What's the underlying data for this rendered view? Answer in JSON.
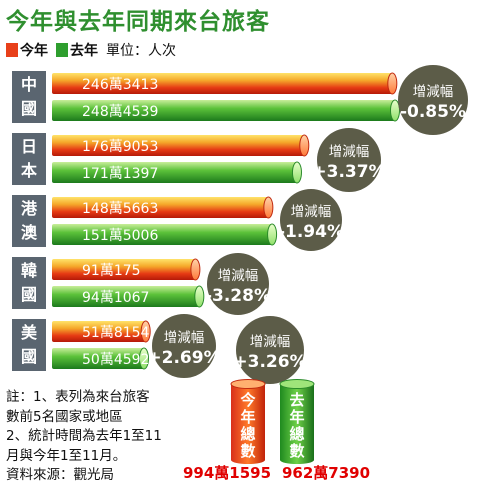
{
  "title": "今年與去年同期來台旅客",
  "legend": {
    "this_year": "今年",
    "last_year": "去年",
    "unit": "單位：人次"
  },
  "colors": {
    "this_year": "#e8401a",
    "last_year": "#2e9e2e",
    "category_bg": "#5a6570",
    "badge_bg": "#5c5c48"
  },
  "chart_data": {
    "type": "bar",
    "orientation": "horizontal",
    "categories": [
      "中國",
      "日本",
      "港澳",
      "韓國",
      "美國"
    ],
    "series": [
      {
        "name": "今年",
        "values": [
          2463413,
          1769053,
          1485663,
          910175,
          518154
        ],
        "labels": [
          "246萬3413",
          "176萬9053",
          "148萬5663",
          "91萬175",
          "51萬8154"
        ]
      },
      {
        "name": "去年",
        "values": [
          2484539,
          1711397,
          1515006,
          941067,
          504592
        ],
        "labels": [
          "248萬4539",
          "171萬1397",
          "151萬5006",
          "94萬1067",
          "50萬4592"
        ]
      }
    ],
    "change_label": "增減幅",
    "changes": [
      "-0.85%",
      "+3.37%",
      "-1.94%",
      "-3.28%",
      "+2.69%"
    ],
    "total": {
      "change_label": "增減幅",
      "change": "+3.26%",
      "this_year_label": "今年總數",
      "last_year_label": "去年總數",
      "this_year_value": "994萬1595",
      "last_year_value": "962萬7390"
    }
  },
  "notes": [
    "註：1、表列為來台旅客",
    "數前5名國家或地區",
    "2、統計時間為去年1至11",
    "月與今年1至11月。",
    "資料來源：觀光局"
  ]
}
